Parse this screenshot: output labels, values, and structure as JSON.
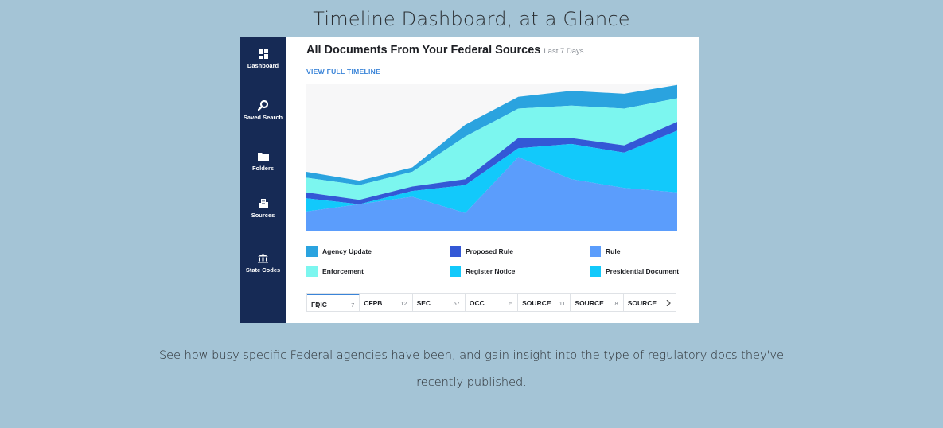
{
  "page": {
    "title": "Timeline Dashboard, at a Glance",
    "caption_line1": "See how busy specific Federal agencies have been, and gain insight into the type of regulatory docs they've",
    "caption_line2": "recently published."
  },
  "sidebar": {
    "items": [
      {
        "label": "Dashboard",
        "icon": "dashboard-icon"
      },
      {
        "label": "Saved Search",
        "icon": "search-icon"
      },
      {
        "label": "Folders",
        "icon": "folder-icon"
      },
      {
        "label": "Sources",
        "icon": "building-icon"
      },
      {
        "label": "State Codes",
        "icon": "institution-icon"
      }
    ]
  },
  "header": {
    "title": "All Documents From Your Federal Sources",
    "range": "Last 7 Days",
    "view_link": "VIEW FULL TIMELINE"
  },
  "colors": {
    "sidebar_bg": "#162a55",
    "page_bg": "#a4c4d6",
    "link": "#3a84d8",
    "chart_bg": "#f7f7f8"
  },
  "chart_data": {
    "type": "area",
    "stacked": true,
    "x": [
      1,
      2,
      3,
      4,
      5,
      6,
      7,
      8
    ],
    "ylim": [
      0,
      100
    ],
    "grid": false,
    "legend_position": "bottom",
    "series": [
      {
        "name": "Rule",
        "color": "#5b9dfc",
        "values": [
          13,
          18,
          23,
          12,
          50,
          35,
          29,
          26
        ]
      },
      {
        "name": "Presidential Document",
        "color": "#12c9fb",
        "values": [
          9,
          0,
          4,
          19,
          6,
          24,
          24,
          42
        ]
      },
      {
        "name": "Proposed Rule",
        "color": "#3358d6",
        "values": [
          4,
          3,
          3,
          4,
          7,
          4,
          5,
          6
        ]
      },
      {
        "name": "Enforcement",
        "color": "#7cf6ef",
        "values": [
          10,
          10,
          10,
          29,
          20,
          22,
          25,
          16
        ]
      },
      {
        "name": "Agency Update",
        "color": "#2aa3df",
        "values": [
          4,
          3,
          3,
          8,
          8,
          10,
          10,
          9
        ]
      },
      {
        "name": "Register Notice",
        "color": "#12c9fb",
        "values": [
          0,
          0,
          0,
          0,
          0,
          0,
          0,
          0
        ]
      }
    ]
  },
  "legend": {
    "items": [
      {
        "label": "Agency Update",
        "color": "#2aa3df"
      },
      {
        "label": "Proposed Rule",
        "color": "#3358d6"
      },
      {
        "label": "Rule",
        "color": "#5b9dfc"
      },
      {
        "label": "Enforcement",
        "color": "#7cf6ef"
      },
      {
        "label": "Register Notice",
        "color": "#12c9fb"
      },
      {
        "label": "Presidential Document",
        "color": "#12c9fb"
      }
    ]
  },
  "tabs": {
    "items": [
      {
        "name": "FDIC",
        "count": "7"
      },
      {
        "name": "CFPB",
        "count": "12"
      },
      {
        "name": "SEC",
        "count": "57"
      },
      {
        "name": "OCC",
        "count": "5"
      },
      {
        "name": "SOURCE",
        "count": "11"
      },
      {
        "name": "SOURCE",
        "count": "8"
      },
      {
        "name": "SOURCE",
        "count": ""
      }
    ]
  }
}
